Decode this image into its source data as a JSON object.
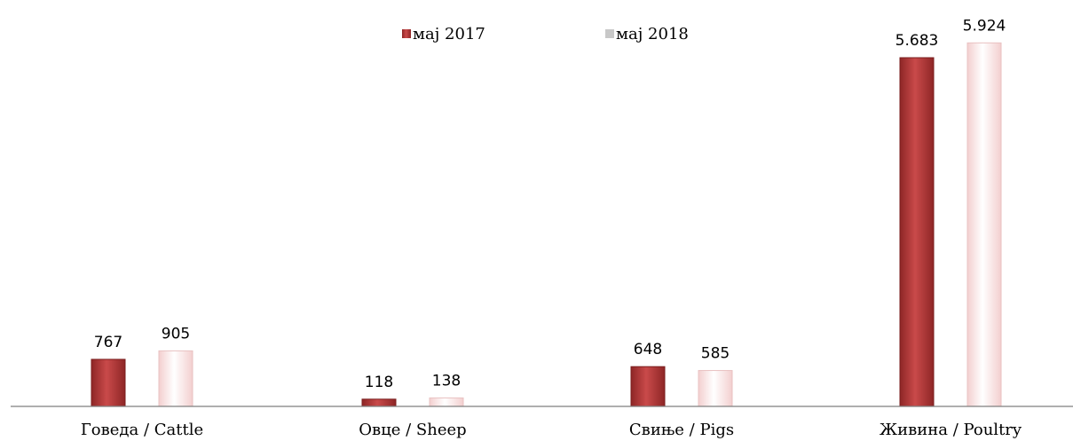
{
  "chart_data": {
    "type": "bar",
    "title": "",
    "xlabel": "",
    "ylabel": "",
    "categories": [
      "Говеда / Cattle",
      "Овце / Sheep",
      "Свиње / Pigs",
      "Живина / Poultry"
    ],
    "series": [
      {
        "name": "мај 2017",
        "values": [
          767,
          118,
          648,
          5683
        ],
        "value_labels": [
          "767",
          "118",
          "648",
          "5.683"
        ],
        "color": "#b03a3a"
      },
      {
        "name": "мај 2018",
        "values": [
          905,
          138,
          585,
          5924
        ],
        "value_labels": [
          "905",
          "138",
          "585",
          "5.924"
        ],
        "color": "#fbe3e3"
      }
    ],
    "ylim": [
      0,
      6000
    ],
    "grid": false,
    "legend_position": "top-center"
  },
  "colors": {
    "series_2017_dark": "#8e2626",
    "series_2017_light": "#c94a4a",
    "series_2018_dark": "#f3cfcf",
    "series_2018_light": "#ffffff",
    "axis": "#7f7f7f",
    "text": "#000000"
  }
}
